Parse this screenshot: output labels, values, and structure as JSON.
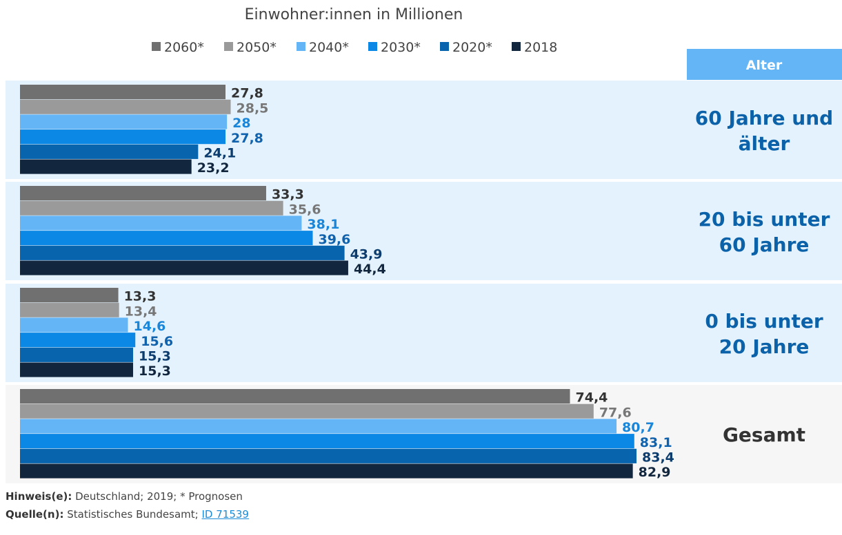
{
  "chart_data": {
    "type": "bar",
    "orientation": "horizontal",
    "title": "Einwohner:innen in Millionen",
    "category_header": "Alter",
    "categories": [
      "60 Jahre und älter",
      "20 bis unter 60 Jahre",
      "0 bis unter 20 Jahre",
      "Gesamt"
    ],
    "series": [
      {
        "name": "2060*",
        "color": "#707070",
        "label_color": "#333333",
        "values": [
          27.8,
          33.3,
          13.3,
          74.4
        ],
        "labels": [
          "27,8",
          "33,3",
          "13,3",
          "74,4"
        ]
      },
      {
        "name": "2050*",
        "color": "#9a9a9a",
        "label_color": "#777777",
        "values": [
          28.5,
          35.6,
          13.4,
          77.6
        ],
        "labels": [
          "28,5",
          "35,6",
          "13,4",
          "77,6"
        ]
      },
      {
        "name": "2040*",
        "color": "#64b5f6",
        "label_color": "#1a86d9",
        "values": [
          28,
          38.1,
          14.6,
          80.7
        ],
        "labels": [
          "28",
          "38,1",
          "14,6",
          "80,7"
        ]
      },
      {
        "name": "2030*",
        "color": "#0b87e6",
        "label_color": "#1162ad",
        "values": [
          27.8,
          39.6,
          15.6,
          83.1
        ],
        "labels": [
          "27,8",
          "39,6",
          "15,6",
          "83,1"
        ]
      },
      {
        "name": "2020*",
        "color": "#0764ad",
        "label_color": "#0d3d6e",
        "values": [
          24.1,
          43.9,
          15.3,
          83.4
        ],
        "labels": [
          "24,1",
          "43,9",
          "15,3",
          "83,4"
        ]
      },
      {
        "name": "2018",
        "color": "#12263d",
        "label_color": "#12263d",
        "values": [
          23.2,
          44.4,
          15.3,
          82.9
        ],
        "labels": [
          "23,2",
          "44,4",
          "15,3",
          "82,9"
        ]
      }
    ],
    "xlim": [
      0,
      83.4
    ],
    "grid": false,
    "legend_placement": "top"
  },
  "footer": {
    "note_label": "Hinweis(e):",
    "note_text": " Deutschland; 2019; * Prognosen",
    "source_label": "Quelle(n):",
    "source_text": " Statistisches Bundesamt; ",
    "source_link": "ID 71539"
  }
}
